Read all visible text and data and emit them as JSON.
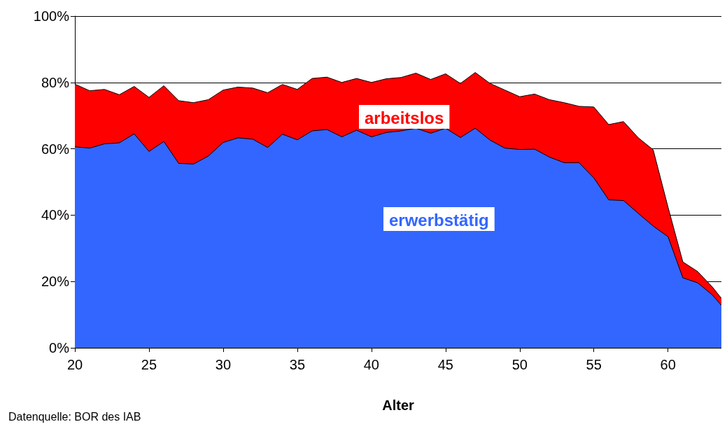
{
  "chart_data": {
    "type": "area",
    "stacked": true,
    "xlabel": "Alter",
    "x": [
      20,
      21,
      22,
      23,
      24,
      25,
      26,
      27,
      28,
      29,
      30,
      31,
      32,
      33,
      34,
      35,
      36,
      37,
      38,
      39,
      40,
      41,
      42,
      43,
      44,
      45,
      46,
      47,
      48,
      49,
      50,
      51,
      52,
      53,
      54,
      55,
      56,
      57,
      58,
      59,
      60,
      61,
      62,
      63,
      63.6
    ],
    "series": [
      {
        "name": "erwerbstätig",
        "color": "#3366ff",
        "values": [
          60.6,
          60.2,
          61.5,
          61.8,
          64.5,
          59.2,
          62.2,
          55.6,
          55.4,
          57.8,
          61.9,
          63.3,
          62.9,
          60.4,
          64.4,
          62.7,
          65.4,
          65.8,
          63.6,
          65.6,
          63.6,
          64.9,
          65.4,
          66.2,
          64.7,
          66.2,
          63.4,
          66.2,
          62.6,
          60.2,
          59.8,
          59.9,
          57.5,
          55.8,
          55.8,
          51.2,
          44.6,
          44.4,
          40.5,
          36.7,
          33.5,
          21.1,
          19.6,
          15.9,
          12.8
        ]
      },
      {
        "name": "arbeitslos",
        "color": "#ff0000",
        "values": [
          18.9,
          17.3,
          16.4,
          14.5,
          14.3,
          16.3,
          16.8,
          18.9,
          18.5,
          17.0,
          15.8,
          15.3,
          15.4,
          16.5,
          15.0,
          15.2,
          15.8,
          15.8,
          16.4,
          15.6,
          16.4,
          16.2,
          16.1,
          16.6,
          16.2,
          16.4,
          16.3,
          16.8,
          17.1,
          17.5,
          15.9,
          16.6,
          17.3,
          18.1,
          17.0,
          21.4,
          22.7,
          23.8,
          22.8,
          23.0,
          8.9,
          4.8,
          3.4,
          2.4,
          2.1
        ]
      }
    ],
    "xlim": [
      20,
      63.6
    ],
    "xticks": [
      20,
      25,
      30,
      35,
      40,
      45,
      50,
      55,
      60
    ],
    "ylim": [
      0,
      100
    ],
    "yticks": [
      {
        "value": 0,
        "label": "0%"
      },
      {
        "value": 20,
        "label": "20%"
      },
      {
        "value": 40,
        "label": "40%"
      },
      {
        "value": 60,
        "label": "60%"
      },
      {
        "value": 80,
        "label": "80%"
      },
      {
        "value": 100,
        "label": "100%"
      }
    ],
    "grid": "y",
    "marker": "none",
    "line_style": "solid",
    "annotations": [
      "Datenquelle: BOR des IAB"
    ]
  }
}
